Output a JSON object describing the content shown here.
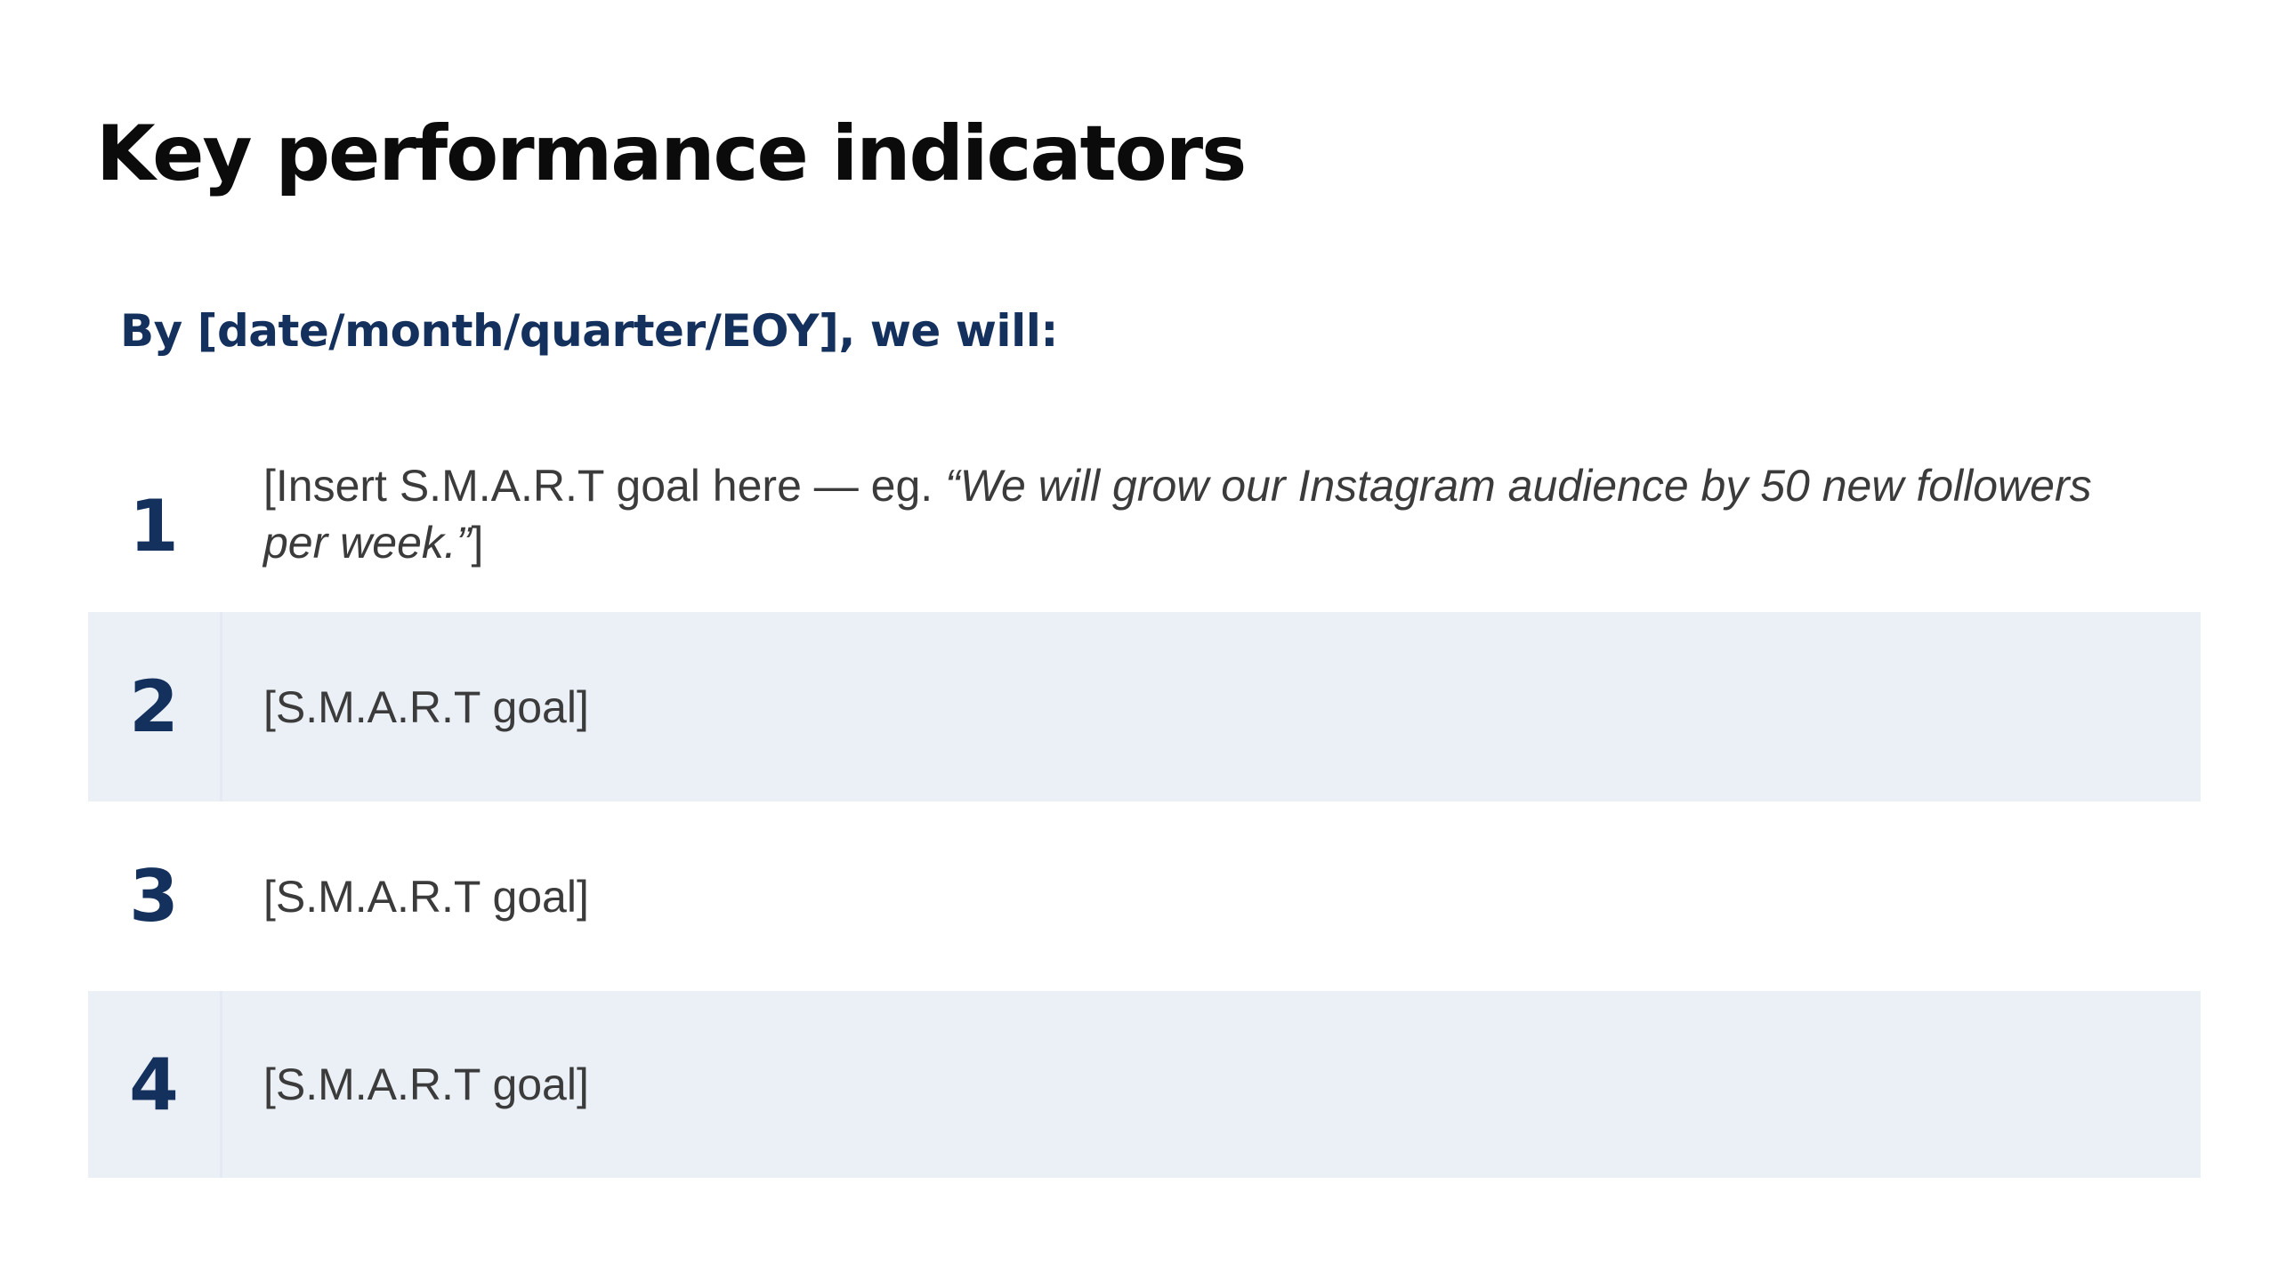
{
  "slide": {
    "title": "Key performance indicators",
    "subtitle": "By [date/month/quarter/EOY], we will:",
    "kpis": [
      {
        "number": "1",
        "text_before": "[Insert S.M.A.R.T goal here — eg. ",
        "text_quote": "“We will grow our Instagram audience by 50 new followers per week.”",
        "text_after": "]"
      },
      {
        "number": "2",
        "text": "[S.M.A.R.T goal]"
      },
      {
        "number": "3",
        "text": "[S.M.A.R.T goal]"
      },
      {
        "number": "4",
        "text": "[S.M.A.R.T goal]"
      }
    ]
  },
  "colors": {
    "title": "#0b0b0b",
    "accent_navy": "#14305c",
    "body_text": "#3b3b3b",
    "row_shade": "#ebf0f7",
    "background": "#ffffff"
  }
}
